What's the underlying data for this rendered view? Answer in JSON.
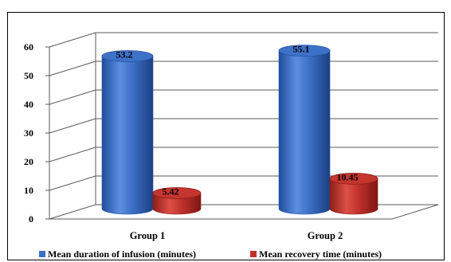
{
  "chart_data": {
    "type": "bar",
    "style": "3d-cylinder",
    "categories": [
      "Group 1",
      "Group 2"
    ],
    "series": [
      {
        "name": "Mean duration of infusion (minutes)",
        "values": [
          53.2,
          55.1
        ],
        "color": "#3B6FC6",
        "labels": [
          "53.2",
          "55.1"
        ]
      },
      {
        "name": "Mean recovery time (minutes)",
        "values": [
          5.42,
          10.45
        ],
        "color": "#C0312B",
        "labels": [
          "5.42",
          "10.45"
        ]
      }
    ],
    "ylim": [
      0,
      60
    ],
    "yticks": [
      "0",
      "10",
      "20",
      "30",
      "40",
      "50",
      "60"
    ],
    "grid": true,
    "legend_position": "bottom"
  }
}
